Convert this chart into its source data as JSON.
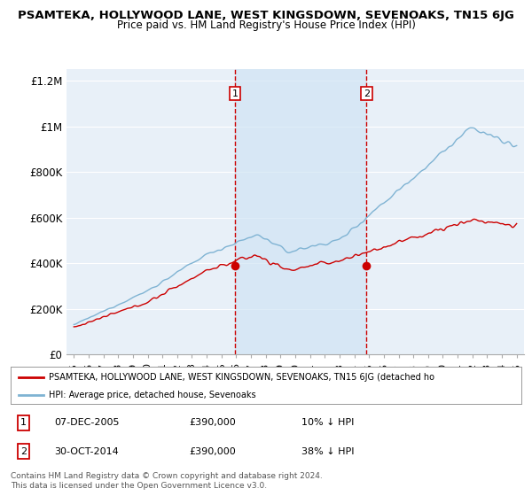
{
  "title": "PSAMTEKA, HOLLYWOOD LANE, WEST KINGSDOWN, SEVENOAKS, TN15 6JG",
  "subtitle": "Price paid vs. HM Land Registry's House Price Index (HPI)",
  "legend_line1": "PSAMTEKA, HOLLYWOOD LANE, WEST KINGSDOWN, SEVENOAKS, TN15 6JG (detached ho",
  "legend_line2": "HPI: Average price, detached house, Sevenoaks",
  "transaction1_label": "1",
  "transaction1_date": "07-DEC-2005",
  "transaction1_price": "£390,000",
  "transaction1_hpi": "10% ↓ HPI",
  "transaction2_label": "2",
  "transaction2_date": "30-OCT-2014",
  "transaction2_price": "£390,000",
  "transaction2_hpi": "38% ↓ HPI",
  "footer": "Contains HM Land Registry data © Crown copyright and database right 2024.\nThis data is licensed under the Open Government Licence v3.0.",
  "line_color_red": "#cc0000",
  "line_color_blue": "#7fb3d3",
  "marker_color": "#cc0000",
  "vline_color": "#cc0000",
  "background_color": "#ffffff",
  "plot_bg_color": "#e8f0f8",
  "shade_color": "#d0e4f5",
  "grid_color": "#ffffff",
  "ylim": [
    0,
    1250000
  ],
  "yticks": [
    0,
    200000,
    400000,
    600000,
    800000,
    1000000,
    1200000
  ],
  "ytick_labels": [
    "£0",
    "£200K",
    "£400K",
    "£600K",
    "£800K",
    "£1M",
    "£1.2M"
  ],
  "transaction1_x": 2005.92,
  "transaction2_x": 2014.83,
  "transaction_price": 390000
}
